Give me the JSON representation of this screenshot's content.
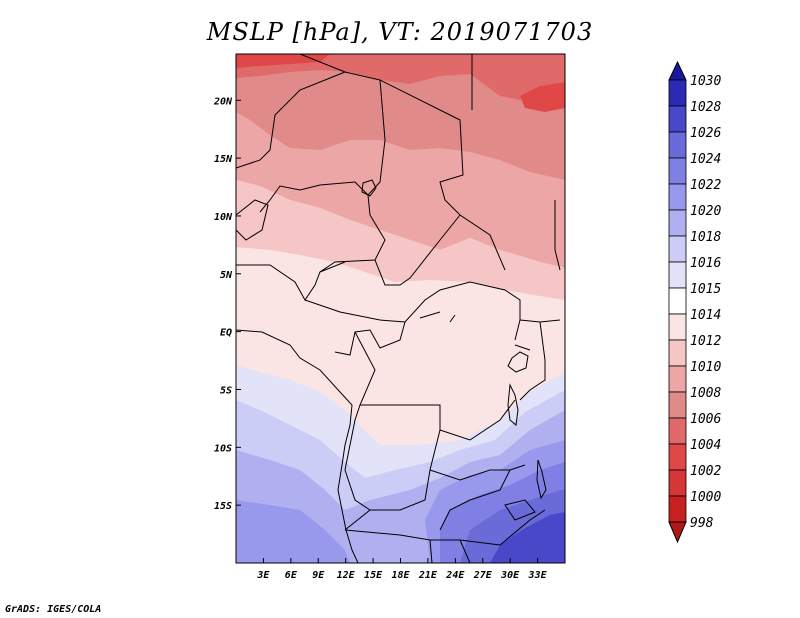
{
  "title": "MSLP [hPa], VT: 2019071703",
  "footer": "GrADS: IGES/COLA",
  "colors": {
    "c998": "#b01818",
    "c1000": "#c62020",
    "c1002": "#d63636",
    "c1004": "#e04848",
    "c1006": "#e06a6a",
    "c1008": "#e08a8a",
    "c1010": "#eda6a6",
    "c1012": "#f6c6c6",
    "c1014": "#fbe4e4",
    "c1015": "#ffffff",
    "c1016": "#e2e2f8",
    "c1018": "#cccdf6",
    "c1020": "#b0b0f0",
    "c1022": "#9898ec",
    "c1024": "#8080e4",
    "c1026": "#6a6ad8",
    "c1028": "#4848c8",
    "c1030": "#2a2ab4",
    "c1030b": "#1818a0",
    "border": "#000000"
  },
  "chart_data": {
    "type": "heatmap",
    "title": "MSLP [hPa], VT: 2019071703",
    "variable": "Mean sea level pressure",
    "units": "hPa",
    "valid_time": "2019071703",
    "lon_range": [
      0,
      36
    ],
    "lat_range": [
      -20,
      24
    ],
    "x_ticks": [
      "3E",
      "6E",
      "9E",
      "12E",
      "15E",
      "18E",
      "21E",
      "24E",
      "27E",
      "30E",
      "33E"
    ],
    "x_tick_values": [
      3,
      6,
      9,
      12,
      15,
      18,
      21,
      24,
      27,
      30,
      33
    ],
    "y_ticks": [
      "20N",
      "15N",
      "10N",
      "5N",
      "EQ",
      "5S",
      "10S",
      "15S"
    ],
    "y_tick_values": [
      20,
      15,
      10,
      5,
      0,
      -5,
      -10,
      -15
    ],
    "colorbar_levels": [
      "1030",
      "1028",
      "1026",
      "1024",
      "1022",
      "1020",
      "1018",
      "1016",
      "1015",
      "1014",
      "1012",
      "1010",
      "1008",
      "1006",
      "1004",
      "1002",
      "1000",
      "998"
    ],
    "colorbar_values": [
      1030,
      1028,
      1026,
      1024,
      1022,
      1020,
      1018,
      1016,
      1015,
      1014,
      1012,
      1010,
      1008,
      1006,
      1004,
      1002,
      1000,
      998
    ],
    "colorbar_colors": [
      "#1818a0",
      "#2a2ab4",
      "#4848c8",
      "#6a6ad8",
      "#8080e4",
      "#9898ec",
      "#b0b0f0",
      "#cccdf6",
      "#e2e2f8",
      "#ffffff",
      "#fbe4e4",
      "#f6c6c6",
      "#eda6a6",
      "#e08a8a",
      "#e06a6a",
      "#e04848",
      "#d63636",
      "#c62020",
      "#b01818"
    ],
    "field_summary": "Low pressure (1006-1010 hPa) over the Sahara in the north; about 1012-1014 hPa across central Africa near the equator; high pressure (1016-1028 hPa) over southern Africa and the southeast"
  }
}
